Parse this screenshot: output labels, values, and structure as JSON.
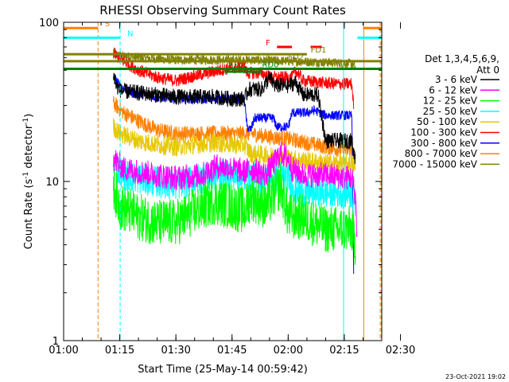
{
  "chart_data": {
    "type": "line",
    "title": "RHESSI Observing Summary Count Rates",
    "xlabel": "Start Time (25-May-14 00:59:42)",
    "ylabel_main": "Count Rate (s",
    "ylabel_sup1": "-1",
    "ylabel_mid": " detector",
    "ylabel_sup2": "-1",
    "ylabel_end": ")",
    "x_range_min": [
      60,
      145
    ],
    "y_range": [
      1,
      100
    ],
    "y_scale": "log",
    "x_ticks": [
      {
        "v": 60,
        "label": "01:00"
      },
      {
        "v": 75,
        "label": "01:15"
      },
      {
        "v": 90,
        "label": "01:30"
      },
      {
        "v": 105,
        "label": "01:45"
      },
      {
        "v": 120,
        "label": "02:00"
      },
      {
        "v": 135,
        "label": "02:15"
      },
      {
        "v": 150,
        "label": "02:30"
      }
    ],
    "y_ticks": [
      {
        "v": 1,
        "label": "1"
      },
      {
        "v": 10,
        "label": "10"
      },
      {
        "v": 100,
        "label": "100"
      }
    ],
    "legend": {
      "header1": "Det 1,3,4,5,6,9,",
      "header2": "Att 0",
      "entries": [
        {
          "label": "3 - 6 keV",
          "color": "#000000"
        },
        {
          "label": "6 - 12 keV",
          "color": "#ff00ff"
        },
        {
          "label": "12 - 25 keV",
          "color": "#00ff00"
        },
        {
          "label": "25 - 50 keV",
          "color": "#00ffff"
        },
        {
          "label": "50 - 100 keV",
          "color": "#e6c800"
        },
        {
          "label": "100 - 300 keV",
          "color": "#ff0000"
        },
        {
          "label": "300 - 800 keV",
          "color": "#0000ff"
        },
        {
          "label": "800 - 7000 keV",
          "color": "#ff8000"
        },
        {
          "label": "7000 - 15000 keV",
          "color": "#808000"
        }
      ]
    },
    "series": [
      {
        "name": "3 - 6 keV",
        "color": "#000000",
        "noise": 0.05,
        "points": [
          [
            73.3,
            47
          ],
          [
            74,
            40
          ],
          [
            75.5,
            37
          ],
          [
            90,
            34
          ],
          [
            100,
            34
          ],
          [
            105,
            33
          ],
          [
            108.3,
            33
          ],
          [
            109.5,
            38
          ],
          [
            113,
            38
          ],
          [
            115,
            45
          ],
          [
            116.5,
            40
          ],
          [
            120,
            40
          ],
          [
            122,
            42
          ],
          [
            124,
            35
          ],
          [
            128,
            35
          ],
          [
            130,
            18
          ],
          [
            137,
            18
          ],
          [
            137.5,
            15
          ],
          [
            138,
            14
          ]
        ]
      },
      {
        "name": "6 - 12 keV",
        "color": "#ff00ff",
        "noise": 0.08,
        "points": [
          [
            73.3,
            14
          ],
          [
            76,
            12
          ],
          [
            85,
            11
          ],
          [
            90,
            10.5
          ],
          [
            97,
            11
          ],
          [
            101,
            12.5
          ],
          [
            105,
            12
          ],
          [
            108.3,
            11.5
          ],
          [
            110,
            12
          ],
          [
            114,
            11
          ],
          [
            118,
            15
          ],
          [
            120,
            14
          ],
          [
            121,
            12
          ],
          [
            124,
            11
          ],
          [
            130,
            11
          ],
          [
            137,
            10.5
          ],
          [
            138,
            8
          ],
          [
            138.5,
            4
          ]
        ]
      },
      {
        "name": "12 - 25 keV",
        "color": "#00ff00",
        "noise": 0.15,
        "points": [
          [
            73.3,
            9.5
          ],
          [
            75,
            7
          ],
          [
            80,
            6
          ],
          [
            85,
            5.5
          ],
          [
            90,
            5.5
          ],
          [
            95,
            6.5
          ],
          [
            100,
            7.5
          ],
          [
            105,
            7
          ],
          [
            108.3,
            6.5
          ],
          [
            110,
            8
          ],
          [
            114,
            7
          ],
          [
            118,
            9.5
          ],
          [
            120,
            6
          ],
          [
            124,
            6
          ],
          [
            130,
            5
          ],
          [
            137,
            5
          ],
          [
            138,
            4
          ]
        ]
      },
      {
        "name": "25 - 50 keV",
        "color": "#00ffff",
        "noise": 0.1,
        "points": [
          [
            73.3,
            13
          ],
          [
            76,
            11
          ],
          [
            84,
            10
          ],
          [
            90,
            9.5
          ],
          [
            97,
            10.5
          ],
          [
            101,
            11
          ],
          [
            105,
            11
          ],
          [
            108.3,
            10.5
          ],
          [
            110,
            11
          ],
          [
            114,
            10
          ],
          [
            118,
            11
          ],
          [
            120,
            10.5
          ],
          [
            122,
            9
          ],
          [
            124,
            8.5
          ],
          [
            130,
            8.5
          ],
          [
            137,
            8.5
          ],
          [
            138,
            7
          ]
        ]
      },
      {
        "name": "50 - 100 keV",
        "color": "#e6c800",
        "noise": 0.06,
        "points": [
          [
            73.3,
            22
          ],
          [
            75,
            20
          ],
          [
            80,
            18
          ],
          [
            85,
            17
          ],
          [
            90,
            16.5
          ],
          [
            100,
            17.5
          ],
          [
            105,
            17
          ],
          [
            108.3,
            17
          ],
          [
            110,
            15
          ],
          [
            115,
            14.5
          ],
          [
            120,
            14
          ],
          [
            125,
            13.5
          ],
          [
            130,
            13
          ],
          [
            137,
            13
          ],
          [
            138,
            12
          ]
        ]
      },
      {
        "name": "100 - 300 keV",
        "color": "#ff0000",
        "noise": 0.04,
        "points": [
          [
            73.3,
            64
          ],
          [
            75.5,
            58
          ],
          [
            80,
            50
          ],
          [
            85,
            45
          ],
          [
            90,
            43
          ],
          [
            95,
            46
          ],
          [
            100,
            49
          ],
          [
            105,
            52
          ],
          [
            108.3,
            52
          ],
          [
            109,
            48
          ],
          [
            113,
            48
          ],
          [
            115,
            45
          ],
          [
            118,
            45
          ],
          [
            121,
            45
          ],
          [
            122,
            50
          ],
          [
            124,
            43
          ],
          [
            128,
            42
          ],
          [
            133,
            41
          ],
          [
            137,
            41
          ],
          [
            137.5,
            30
          ]
        ]
      },
      {
        "name": "300 - 800 keV",
        "color": "#0000ff",
        "noise": 0.03,
        "points": [
          [
            73.3,
            46
          ],
          [
            75,
            40
          ],
          [
            78,
            36
          ],
          [
            85,
            34
          ],
          [
            90,
            33
          ],
          [
            100,
            33
          ],
          [
            108.3,
            33
          ],
          [
            109,
            22
          ],
          [
            110,
            21
          ],
          [
            111,
            25
          ],
          [
            116,
            25
          ],
          [
            117,
            22
          ],
          [
            120,
            22
          ],
          [
            121,
            27
          ],
          [
            125,
            27
          ],
          [
            127,
            28
          ],
          [
            130,
            26
          ],
          [
            137,
            26
          ],
          [
            137.5,
            2.5
          ]
        ]
      },
      {
        "name": "800 - 7000 keV",
        "color": "#ff8000",
        "noise": 0.05,
        "points": [
          [
            73.3,
            31
          ],
          [
            76,
            27
          ],
          [
            80,
            24
          ],
          [
            85,
            21
          ],
          [
            90,
            20
          ],
          [
            100,
            20
          ],
          [
            105,
            20
          ],
          [
            108.3,
            20
          ],
          [
            110,
            20
          ],
          [
            115,
            19
          ],
          [
            120,
            18.5
          ],
          [
            125,
            17.5
          ],
          [
            130,
            16.5
          ],
          [
            137,
            15.5
          ],
          [
            138,
            14
          ]
        ]
      },
      {
        "name": "7000 - 15000 keV",
        "color": "#808000",
        "noise": 0.03,
        "points": [
          [
            73.3,
            66
          ],
          [
            74,
            62
          ],
          [
            80,
            60
          ],
          [
            90,
            58
          ],
          [
            100,
            58
          ],
          [
            110,
            58
          ],
          [
            120,
            57
          ],
          [
            130,
            56
          ],
          [
            137,
            55
          ],
          [
            138,
            52
          ]
        ]
      }
    ],
    "flag_bars": [
      {
        "label": "S",
        "color": "#ff8000",
        "y": 92,
        "segments": [
          [
            60,
            69.2
          ],
          [
            140,
            145
          ]
        ],
        "label_x": 71
      },
      {
        "label": "N",
        "color": "#00ffff",
        "y": 80,
        "segments": [
          [
            60,
            75.1
          ],
          [
            138.5,
            145
          ]
        ],
        "label_x": 77
      },
      {
        "label": "F",
        "color": "#ff0000",
        "y": 70,
        "segments": [
          [
            117,
            121
          ],
          [
            126,
            129
          ]
        ],
        "label_x": 114
      },
      {
        "label": "FD1",
        "color": "#808000",
        "y": 63,
        "segments": [
          [
            60,
            125
          ]
        ],
        "label_x": 126
      },
      {
        "label": "FD2",
        "color": "#808000",
        "y": 57,
        "segments": [
          [
            60,
            145
          ]
        ],
        "label_x": 120
      },
      {
        "label": "RD0",
        "color": "#008000",
        "y": 51,
        "segments": [
          [
            60,
            145
          ]
        ],
        "label_x": 113
      },
      {
        "label": "RD0",
        "color": "#008000",
        "y": 49,
        "segments": [
          [
            103,
            113
          ]
        ],
        "label_x": 104
      }
    ],
    "vlines": [
      {
        "x": 69.2,
        "color": "#ff8000",
        "dash": true
      },
      {
        "x": 75.1,
        "color": "#00ffff",
        "dash": true
      },
      {
        "x": 134.8,
        "color": "#00ffff",
        "dash": false
      },
      {
        "x": 140.2,
        "color": "#ff8000",
        "dash": false
      },
      {
        "x": 144.6,
        "color": "#ff8000",
        "dash": true
      },
      {
        "x": 144.9,
        "color": "#00ffff",
        "dash": true
      }
    ],
    "footer": "23-Oct-2021 19:02"
  }
}
